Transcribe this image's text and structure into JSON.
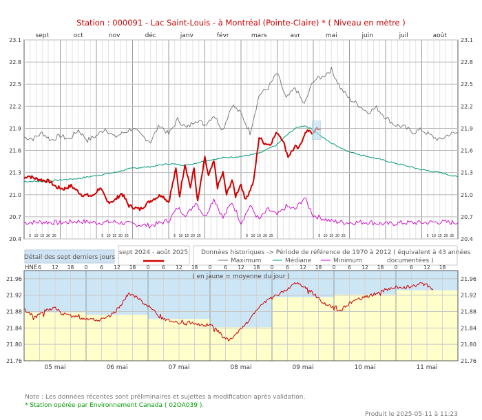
{
  "header": {
    "title": "Station : 000091      -   Lac Saint-Louis - à Montréal (Pointe-Claire) *   ( Niveau en mètre )"
  },
  "legend": {
    "detail_label": "Détail des sept derniers jours",
    "period_label": "sept 2024 - août 2025",
    "historic_label": "Données historiques -> Période de référence  de 1970 à 2012   ( équivalent à 43 années documentées )",
    "max_label": "Maximum",
    "median_label": "Médiane",
    "min_label": "Minimum"
  },
  "footer": {
    "note": "Note : Les données récentes sont préliminaires et sujettes à modification après validation.",
    "operator": "* Station opérée par Environnement Canada ( 02OA039 ).",
    "produced": "Produit le 2025-05-11 à 11:23"
  },
  "colors": {
    "current": "#cc0000",
    "maximum": "#707070",
    "median": "#009977",
    "minimum": "#cc00cc",
    "grid": "#b8b8b8",
    "daily_mean_fill": "#ffffcc",
    "above_fill": "#cce6f6"
  },
  "chart_data": [
    {
      "type": "line",
      "months": [
        "sept",
        "oct",
        "nov",
        "déc",
        "janv",
        "févr",
        "mars",
        "avr",
        "mai",
        "juin",
        "juil",
        "août"
      ],
      "day_ticks": [
        "5",
        "10",
        "15",
        "20",
        "25"
      ],
      "y_ticks": [
        "23.1",
        "22.8",
        "22.5",
        "22.2",
        "21.9",
        "21.6",
        "21.3",
        "21.0",
        "20.7",
        "20.4"
      ],
      "ylim": [
        20.4,
        23.1
      ],
      "series": [
        {
          "name": "Maximum",
          "x": [
            0,
            0.25,
            0.5,
            0.75,
            1,
            1.25,
            1.5,
            1.75,
            2,
            2.25,
            2.5,
            2.75,
            3,
            3.25,
            3.5,
            3.75,
            4,
            4.25,
            4.5,
            4.75,
            5,
            5.25,
            5.5,
            5.75,
            6,
            6.25,
            6.5,
            6.75,
            7,
            7.25,
            7.5,
            7.75,
            8,
            8.25,
            8.5,
            8.75,
            9,
            9.25,
            9.5,
            9.75,
            10,
            10.25,
            10.5,
            10.75,
            11,
            11.25,
            11.5,
            11.75,
            12
          ],
          "y": [
            21.78,
            21.76,
            21.84,
            21.74,
            21.8,
            21.75,
            21.88,
            21.74,
            21.8,
            21.9,
            21.78,
            21.84,
            21.9,
            21.8,
            21.72,
            21.95,
            21.82,
            22.02,
            21.9,
            22.02,
            21.95,
            22.08,
            21.88,
            22.22,
            22.1,
            21.84,
            22.35,
            22.45,
            22.65,
            22.3,
            22.45,
            22.22,
            22.55,
            22.6,
            22.7,
            22.45,
            22.3,
            22.22,
            22.12,
            22.18,
            22.05,
            21.95,
            21.92,
            21.85,
            21.88,
            21.8,
            21.74,
            21.82,
            21.84
          ]
        },
        {
          "name": "Médiane",
          "x": [
            0,
            0.5,
            1,
            1.5,
            2,
            2.5,
            3,
            3.5,
            4,
            4.5,
            5,
            5.5,
            6,
            6.5,
            7,
            7.25,
            7.5,
            7.75,
            8,
            8.25,
            8.5,
            9,
            9.5,
            10,
            10.5,
            11,
            11.5,
            12
          ],
          "y": [
            21.18,
            21.18,
            21.2,
            21.22,
            21.26,
            21.3,
            21.36,
            21.38,
            21.42,
            21.4,
            21.46,
            21.5,
            21.52,
            21.56,
            21.68,
            21.8,
            21.9,
            21.94,
            21.88,
            21.78,
            21.7,
            21.58,
            21.52,
            21.46,
            21.4,
            21.34,
            21.3,
            21.24
          ]
        },
        {
          "name": "Minimum",
          "x": [
            0,
            0.5,
            1,
            1.5,
            2,
            2.5,
            3,
            3.5,
            4,
            4.25,
            4.5,
            4.75,
            5,
            5.25,
            5.5,
            5.75,
            6,
            6.25,
            6.5,
            6.75,
            7,
            7.25,
            7.5,
            7.75,
            8,
            8.5,
            9,
            9.5,
            10,
            10.5,
            11,
            11.5,
            12
          ],
          "y": [
            20.62,
            20.63,
            20.62,
            20.64,
            20.62,
            20.63,
            20.6,
            20.58,
            20.65,
            20.82,
            20.72,
            20.9,
            20.7,
            20.95,
            20.68,
            20.9,
            20.62,
            20.85,
            20.66,
            20.8,
            20.72,
            20.84,
            20.8,
            20.96,
            20.72,
            20.64,
            20.62,
            20.63,
            20.6,
            20.62,
            20.62,
            20.63,
            20.62
          ]
        },
        {
          "name": "sept 2024 - août 2025",
          "x": [
            0,
            0.1,
            0.3,
            0.5,
            0.7,
            0.9,
            1.1,
            1.3,
            1.6,
            1.9,
            2.1,
            2.3,
            2.5,
            2.7,
            2.9,
            3.2,
            3.5,
            3.8,
            4.0,
            4.2,
            4.3,
            4.45,
            4.6,
            4.7,
            4.8,
            5.0,
            5.1,
            5.25,
            5.35,
            5.5,
            5.6,
            5.75,
            5.85,
            6.0,
            6.1,
            6.2,
            6.35,
            6.5,
            6.65,
            6.8,
            7.0,
            7.15,
            7.3,
            7.5,
            7.6,
            7.75,
            7.9,
            8.0,
            8.1,
            8.2
          ],
          "y": [
            21.22,
            21.26,
            21.22,
            21.2,
            21.18,
            21.1,
            21.08,
            21.12,
            21.0,
            20.98,
            21.1,
            20.9,
            20.92,
            21.02,
            20.85,
            20.8,
            20.92,
            21.0,
            20.9,
            21.35,
            20.98,
            21.42,
            21.1,
            21.36,
            20.9,
            21.5,
            21.25,
            21.45,
            21.1,
            21.3,
            21.0,
            21.2,
            20.98,
            21.15,
            20.95,
            21.0,
            21.18,
            21.78,
            21.7,
            21.68,
            21.85,
            21.75,
            21.52,
            21.65,
            21.62,
            21.82,
            21.88,
            21.82,
            21.9,
            21.88
          ]
        }
      ]
    },
    {
      "type": "line",
      "title": "( en jaune = moyenne du jour )",
      "xlabel": "HNE",
      "hour_ticks": [
        "6",
        "12",
        "18",
        "0"
      ],
      "days": [
        "05 mai",
        "06 mai",
        "07 mai",
        "08 mai",
        "09 mai",
        "10 mai",
        "11 mai"
      ],
      "y_ticks": [
        "21.96",
        "21.92",
        "21.88",
        "21.84",
        "21.80",
        "21.76"
      ],
      "ylim": [
        21.76,
        21.98
      ],
      "daily_mean": [
        21.878,
        21.872,
        21.862,
        21.842,
        21.915,
        21.922,
        21.932
      ],
      "series": [
        {
          "name": "sept 2024 - août 2025",
          "x": [
            0,
            0.1,
            0.2,
            0.3,
            0.4,
            0.5,
            0.6,
            0.7,
            0.8,
            0.9,
            1.0,
            1.1,
            1.2,
            1.3,
            1.4,
            1.5,
            1.6,
            1.7,
            1.8,
            1.9,
            2.0,
            2.1,
            2.2,
            2.3,
            2.4,
            2.5,
            2.6,
            2.7,
            2.8,
            2.9,
            3.0,
            3.1,
            3.2,
            3.3,
            3.4,
            3.5,
            3.6,
            3.7,
            3.8,
            3.9,
            4.0,
            4.1,
            4.2,
            4.3,
            4.4,
            4.5,
            4.6,
            4.7,
            4.8,
            4.9,
            5.0,
            5.1,
            5.2,
            5.3,
            5.4,
            5.5,
            5.6,
            5.7,
            5.8,
            5.9,
            6.0,
            6.1,
            6.2,
            6.3,
            6.4,
            6.5,
            6.6
          ],
          "y": [
            21.885,
            21.875,
            21.868,
            21.88,
            21.885,
            21.89,
            21.875,
            21.872,
            21.868,
            21.865,
            21.863,
            21.862,
            21.86,
            21.862,
            21.87,
            21.885,
            21.905,
            21.925,
            21.915,
            21.905,
            21.895,
            21.88,
            21.865,
            21.86,
            21.855,
            21.852,
            21.85,
            21.855,
            21.85,
            21.845,
            21.85,
            21.838,
            21.82,
            21.81,
            21.82,
            21.838,
            21.852,
            21.87,
            21.895,
            21.905,
            21.912,
            21.922,
            21.93,
            21.942,
            21.95,
            21.942,
            21.932,
            21.92,
            21.905,
            21.895,
            21.89,
            21.882,
            21.895,
            21.905,
            21.91,
            21.915,
            21.92,
            21.925,
            21.932,
            21.935,
            21.94,
            21.937,
            21.94,
            21.943,
            21.948,
            21.945,
            21.935
          ]
        }
      ]
    }
  ]
}
